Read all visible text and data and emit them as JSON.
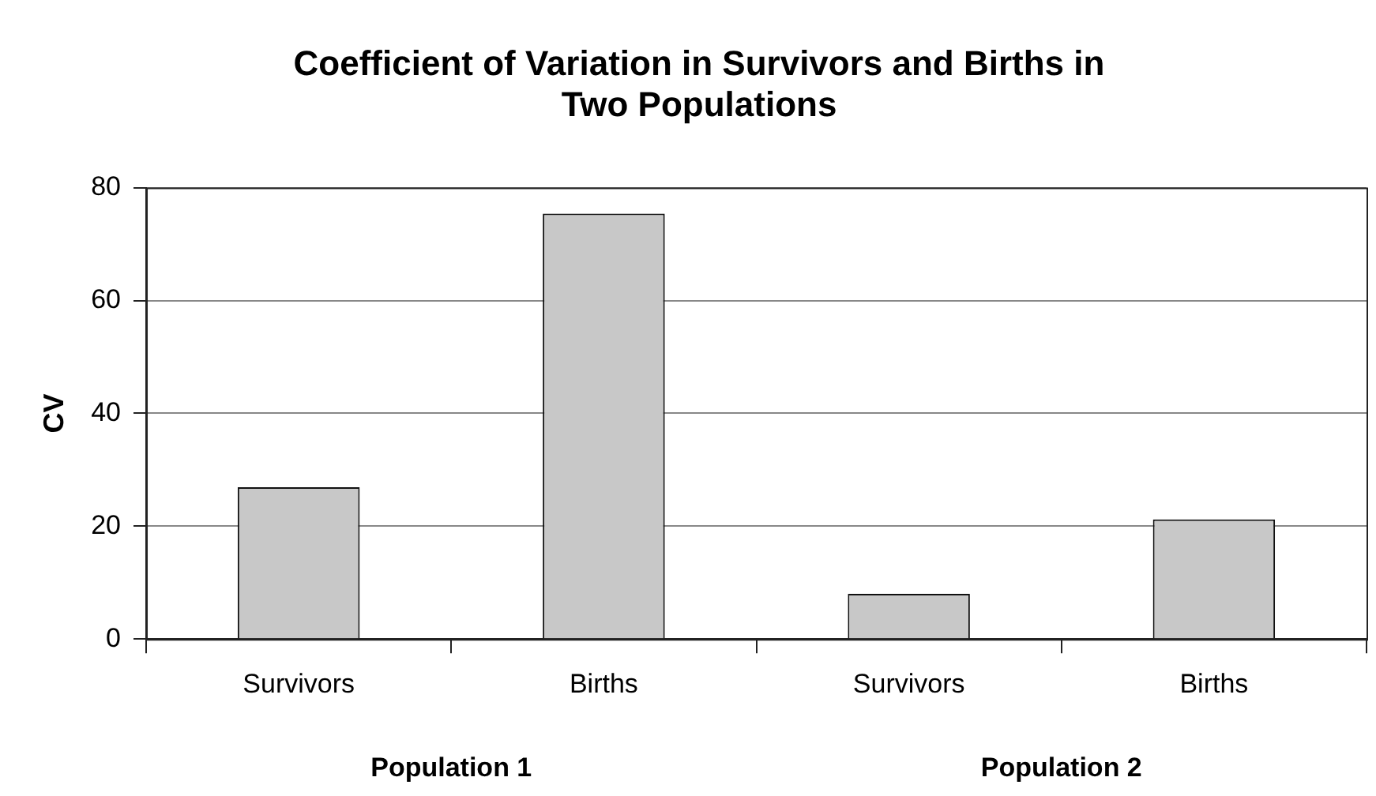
{
  "chart_data": {
    "type": "bar",
    "title": "Coefficient of Variation in Survivors and Births in Two Populations",
    "ylabel": "CV",
    "categories": [
      "Survivors",
      "Births",
      "Survivors",
      "Births"
    ],
    "values": [
      26.9,
      75.4,
      8.0,
      21.2
    ],
    "color": "#c8c8c8",
    "ylim": [
      0,
      80
    ],
    "yticks": [
      0,
      20,
      40,
      60,
      80
    ],
    "grid": "y",
    "annotations": [
      "Population 1",
      "Population 2"
    ]
  }
}
